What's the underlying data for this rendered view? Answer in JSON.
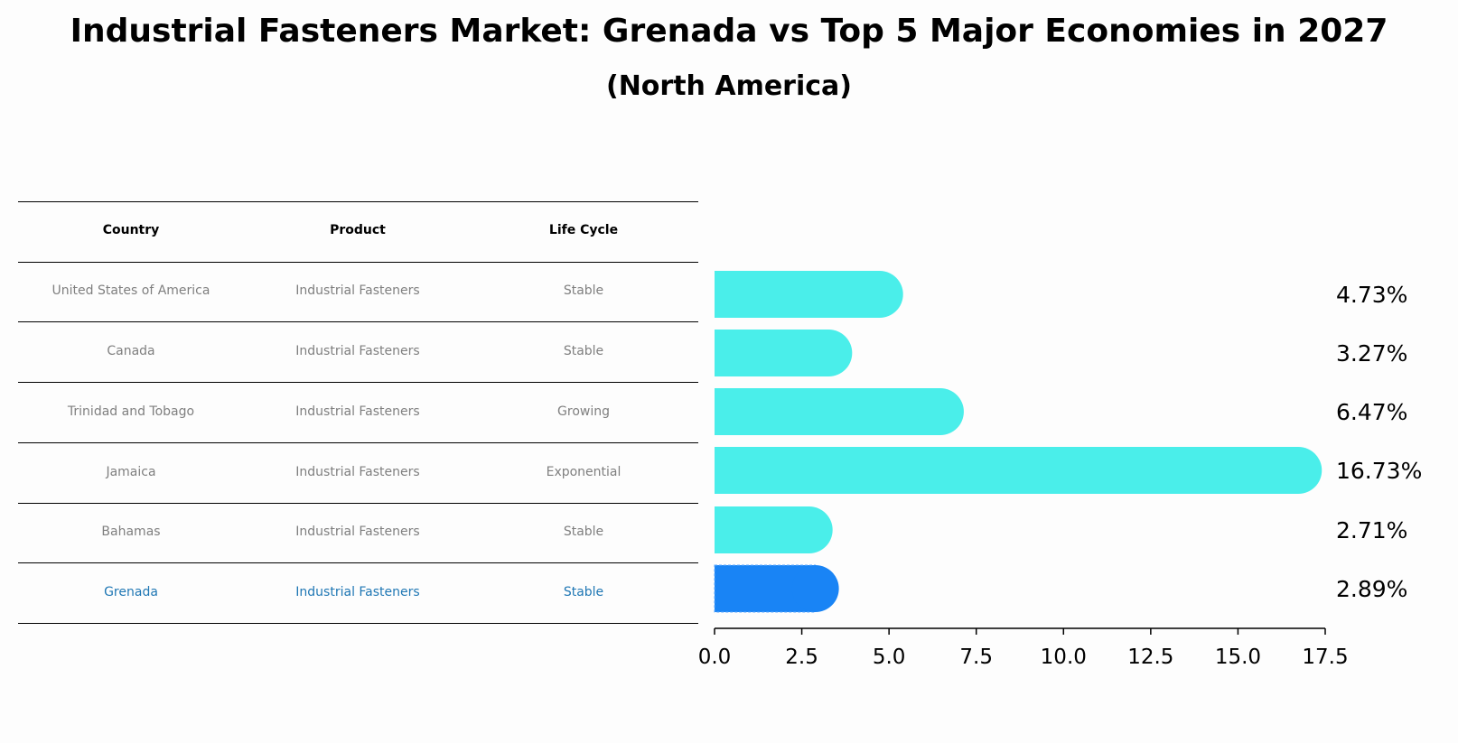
{
  "title": "Industrial Fasteners Market: Grenada vs Top 5 Major Economies in 2027",
  "subtitle": "(North America)",
  "table": {
    "headers": [
      "Country",
      "Product",
      "Life Cycle"
    ],
    "rows": [
      [
        "United States of America",
        "Industrial Fasteners",
        "Stable"
      ],
      [
        "Canada",
        "Industrial Fasteners",
        "Stable"
      ],
      [
        "Trinidad and Tobago",
        "Industrial Fasteners",
        "Growing"
      ],
      [
        "Jamaica",
        "Industrial Fasteners",
        "Exponential"
      ],
      [
        "Bahamas",
        "Industrial Fasteners",
        "Stable"
      ],
      [
        "Grenada",
        "Industrial Fasteners",
        "Stable"
      ]
    ],
    "highlight_row": 5,
    "highlight_color": "#1f77b4"
  },
  "chart_data": {
    "type": "bar",
    "orientation": "horizontal",
    "categories": [
      "United States of America",
      "Canada",
      "Trinidad and Tobago",
      "Jamaica",
      "Bahamas",
      "Grenada"
    ],
    "values": [
      4.73,
      3.27,
      6.47,
      16.73,
      2.71,
      2.89
    ],
    "value_labels": [
      "4.73%",
      "3.27%",
      "6.47%",
      "16.73%",
      "2.71%",
      "2.89%"
    ],
    "xlim": [
      0,
      17.5
    ],
    "xticks": [
      0,
      2.5,
      5,
      7.5,
      10,
      12.5,
      15,
      17.5
    ],
    "xtick_labels": [
      "0.0",
      "2.5",
      "5.0",
      "7.5",
      "10.0",
      "12.5",
      "15.0",
      "17.5"
    ],
    "colors": [
      "#4aeeea",
      "#4aeeea",
      "#4aeeea",
      "#4aeeea",
      "#4aeeea",
      "#1984f5"
    ],
    "highlight": "Grenada",
    "grid": false
  }
}
